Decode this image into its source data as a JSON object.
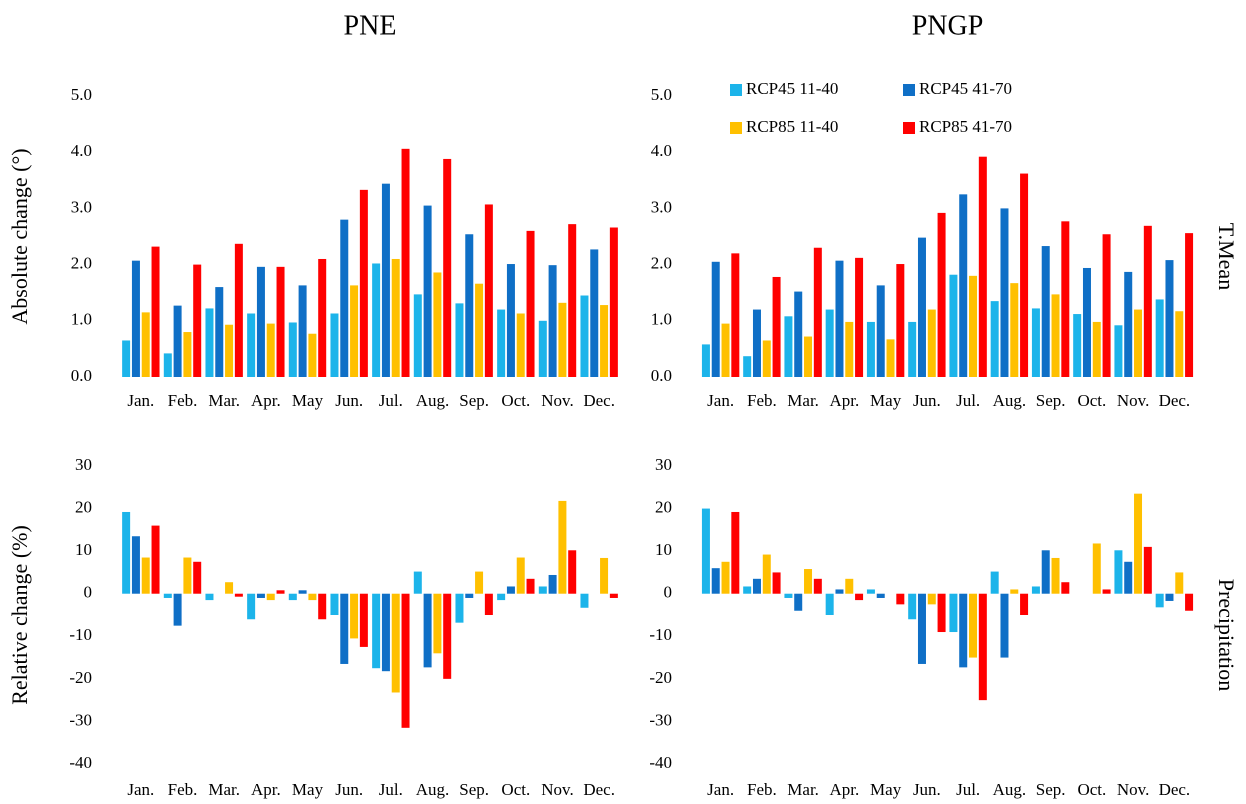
{
  "chart_data": [
    {
      "type": "bar",
      "title": "PNE",
      "y_label": "Absolute change (°)",
      "categories": [
        "Jan.",
        "Feb.",
        "Mar.",
        "Apr.",
        "May",
        "Jun.",
        "Jul.",
        "Aug.",
        "Sep.",
        "Oct.",
        "Nov.",
        "Dec."
      ],
      "series": [
        {
          "color": "#1cb4ea",
          "values": [
            0.65,
            0.42,
            1.22,
            1.13,
            0.97,
            1.13,
            2.02,
            1.47,
            1.31,
            1.2,
            1.0,
            1.45
          ]
        },
        {
          "color": "#0f6fc6",
          "values": [
            2.07,
            1.27,
            1.6,
            1.96,
            1.63,
            2.8,
            3.44,
            3.05,
            2.54,
            2.01,
            1.99,
            2.27
          ]
        },
        {
          "color": "#ffc000",
          "values": [
            1.15,
            0.8,
            0.93,
            0.95,
            0.77,
            1.63,
            2.1,
            1.86,
            1.66,
            1.13,
            1.32,
            1.28
          ]
        },
        {
          "color": "#ff0000",
          "values": [
            2.32,
            2.0,
            2.37,
            1.96,
            2.1,
            3.33,
            4.06,
            3.88,
            3.07,
            2.6,
            2.72,
            2.66
          ]
        }
      ],
      "ylim": [
        0,
        5
      ],
      "yticks": [
        {
          "value": 0,
          "label": "0.0"
        },
        {
          "value": 1,
          "label": "1.0"
        },
        {
          "value": 2,
          "label": "2.0"
        },
        {
          "value": 3,
          "label": "3.0"
        },
        {
          "value": 4,
          "label": "4.0"
        },
        {
          "value": 5,
          "label": "5.0"
        }
      ]
    },
    {
      "type": "bar",
      "title": "PNGP",
      "row_label": "T.Mean",
      "legend": "top",
      "categories": [
        "Jan.",
        "Feb.",
        "Mar.",
        "Apr.",
        "May",
        "Jun.",
        "Jul.",
        "Aug.",
        "Sep.",
        "Oct.",
        "Nov.",
        "Dec."
      ],
      "series": [
        {
          "name": "RCP45 11-40",
          "color": "#1cb4ea",
          "values": [
            0.58,
            0.37,
            1.08,
            1.2,
            0.98,
            0.98,
            1.82,
            1.35,
            1.22,
            1.12,
            0.92,
            1.38
          ]
        },
        {
          "name": "RCP45 41-70",
          "color": "#0f6fc6",
          "values": [
            2.05,
            1.2,
            1.52,
            2.07,
            1.63,
            2.48,
            3.25,
            3.0,
            2.33,
            1.94,
            1.87,
            2.08
          ]
        },
        {
          "name": "RCP85 11-40",
          "color": "#ffc000",
          "values": [
            0.95,
            0.65,
            0.72,
            0.98,
            0.67,
            1.2,
            1.8,
            1.67,
            1.47,
            0.98,
            1.2,
            1.17
          ]
        },
        {
          "name": "RCP85 41-70",
          "color": "#ff0000",
          "values": [
            2.2,
            1.78,
            2.3,
            2.12,
            2.01,
            2.92,
            3.92,
            3.62,
            2.77,
            2.54,
            2.69,
            2.56
          ]
        }
      ],
      "ylim": [
        0,
        5
      ],
      "yticks": [
        {
          "value": 0,
          "label": "0.0"
        },
        {
          "value": 1,
          "label": "1.0"
        },
        {
          "value": 2,
          "label": "2.0"
        },
        {
          "value": 3,
          "label": "3.0"
        },
        {
          "value": 4,
          "label": "4.0"
        },
        {
          "value": 5,
          "label": "5.0"
        }
      ]
    },
    {
      "type": "bar",
      "y_label": "Relative change (%)",
      "categories": [
        "Jan.",
        "Feb.",
        "Mar.",
        "Apr.",
        "May",
        "Jun.",
        "Jul.",
        "Aug.",
        "Sep.",
        "Oct.",
        "Nov.",
        "Dec."
      ],
      "series": [
        {
          "color": "#1cb4ea",
          "values": [
            19.2,
            -1,
            -1.5,
            -6,
            -1.5,
            -5,
            -17.5,
            5.2,
            -6.8,
            -1.5,
            1.7,
            -3.3
          ]
        },
        {
          "color": "#0f6fc6",
          "values": [
            13.5,
            -7.5,
            0,
            -1,
            0.8,
            -16.5,
            -18.2,
            -17.3,
            -1,
            1.7,
            4.4,
            0
          ]
        },
        {
          "color": "#ffc000",
          "values": [
            8.5,
            8.5,
            2.7,
            -1.5,
            -1.5,
            -10.5,
            -23.2,
            -14,
            5.2,
            8.5,
            21.8,
            8.4
          ]
        },
        {
          "color": "#ff0000",
          "values": [
            16,
            7.5,
            -0.7,
            0.8,
            -6,
            -12.5,
            -31.5,
            -20,
            -5,
            3.5,
            10.2,
            -1
          ]
        }
      ],
      "ylim": [
        -40,
        30
      ],
      "yticks": [
        -40,
        -30,
        -20,
        -10,
        0,
        10,
        20,
        30
      ]
    },
    {
      "type": "bar",
      "row_label": "Precipitation",
      "categories": [
        "Jan.",
        "Feb.",
        "Mar.",
        "Apr.",
        "May",
        "Jun.",
        "Jul.",
        "Aug.",
        "Sep.",
        "Oct.",
        "Nov.",
        "Dec."
      ],
      "series": [
        {
          "color": "#1cb4ea",
          "values": [
            20,
            1.7,
            -1,
            -5,
            1,
            -6,
            -9,
            5.2,
            1.7,
            0,
            10.2,
            -3.2
          ]
        },
        {
          "color": "#0f6fc6",
          "values": [
            6,
            3.5,
            -4,
            1,
            -1,
            -16.5,
            -17.3,
            -15,
            10.2,
            0,
            7.5,
            -1.7
          ]
        },
        {
          "color": "#ffc000",
          "values": [
            7.5,
            9.2,
            5.8,
            3.5,
            0,
            -2.5,
            -15,
            1,
            8.4,
            11.8,
            23.5,
            5
          ]
        },
        {
          "color": "#ff0000",
          "values": [
            19.2,
            5,
            3.5,
            -1.5,
            -2.5,
            -9,
            -25,
            -5,
            2.7,
            1,
            11,
            -4
          ]
        }
      ],
      "ylim": [
        -40,
        30
      ],
      "yticks": [
        -40,
        -30,
        -20,
        -10,
        0,
        10,
        20,
        30
      ]
    }
  ]
}
